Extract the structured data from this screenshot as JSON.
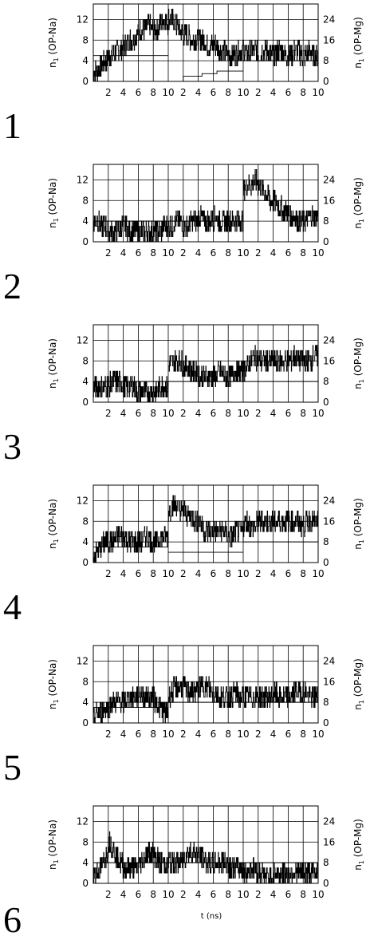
{
  "figure": {
    "xlabel": "t (ns)",
    "panel_numbers": [
      "1",
      "2",
      "3",
      "4",
      "5",
      "6"
    ]
  },
  "chart_data": [
    {
      "type": "line",
      "panel": "1",
      "ylabel_left": "n1 (OP-Na)",
      "ylabel_right": "n1 (OP-Mg)",
      "ylim_left": [
        0,
        15
      ],
      "ylim_right": [
        0,
        30
      ],
      "yticks_left": [
        0,
        4,
        8,
        12
      ],
      "yticks_right": [
        0,
        8,
        16,
        24
      ],
      "segments": 3,
      "segment_xlim_ns": [
        0,
        10
      ],
      "xtick_labels": [
        "2",
        "4",
        "6",
        "8",
        "10",
        "2",
        "4",
        "6",
        "8",
        "10",
        "2",
        "4",
        "6",
        "8",
        "10"
      ],
      "grid": true,
      "series": [
        {
          "axis": "left",
          "segment_levels": [
            [
              2,
              2,
              3,
              4,
              5,
              5,
              6,
              6,
              7,
              8,
              8,
              9,
              10,
              10,
              11,
              10,
              10,
              11,
              12,
              11
            ],
            [
              12,
              12,
              11,
              10,
              9,
              9,
              8,
              8,
              8,
              8,
              7,
              7,
              7,
              6,
              6,
              5,
              5,
              5,
              6,
              6
            ],
            [
              6,
              5,
              6,
              6,
              5,
              6,
              6,
              5,
              5,
              6,
              6,
              5,
              5,
              6,
              6,
              5,
              5,
              6,
              5,
              5
            ]
          ]
        },
        {
          "axis": "right",
          "segment_levels": [
            [
              10,
              10,
              10,
              10,
              10,
              10,
              10,
              10,
              10,
              10,
              10,
              10,
              10,
              10,
              10,
              10,
              10,
              10,
              10,
              10
            ],
            [
              0,
              0,
              0,
              0,
              2,
              2,
              2,
              2,
              2,
              3,
              3,
              3,
              3,
              4,
              4,
              4,
              4,
              4,
              4,
              4
            ],
            [
              8,
              8,
              8,
              8,
              8,
              8,
              8,
              8,
              8,
              8,
              8,
              8,
              8,
              8,
              8,
              8,
              8,
              8,
              8,
              8
            ]
          ]
        }
      ]
    },
    {
      "type": "line",
      "panel": "2",
      "ylabel_left": "n1 (OP-Na)",
      "ylabel_right": "n1 (OP-Mg)",
      "ylim_left": [
        0,
        15
      ],
      "ylim_right": [
        0,
        30
      ],
      "yticks_left": [
        0,
        4,
        8,
        12
      ],
      "yticks_right": [
        0,
        8,
        16,
        24
      ],
      "segments": 3,
      "segment_xlim_ns": [
        0,
        10
      ],
      "xtick_labels": [
        "2",
        "4",
        "6",
        "8",
        "10",
        "2",
        "4",
        "6",
        "8",
        "10",
        "2",
        "4",
        "6",
        "8",
        "10"
      ],
      "grid": true,
      "series": [
        {
          "axis": "left",
          "segment_levels": [
            [
              4,
              4,
              3,
              3,
              2,
              2,
              2,
              3,
              3,
              2,
              2,
              2,
              2,
              2,
              2,
              2,
              2,
              2,
              3,
              3
            ],
            [
              3,
              3,
              4,
              4,
              3,
              3,
              4,
              4,
              5,
              4,
              4,
              4,
              5,
              4,
              4,
              4,
              4,
              4,
              4,
              4
            ],
            [
              10,
              11,
              11,
              12,
              11,
              10,
              9,
              8,
              8,
              7,
              6,
              6,
              5,
              5,
              4,
              4,
              4,
              5,
              5,
              5
            ]
          ]
        },
        {
          "axis": "right",
          "segment_levels": [
            [
              8,
              8,
              8,
              8,
              8,
              8,
              8,
              8,
              8,
              8,
              8,
              8,
              8,
              8,
              8,
              8,
              8,
              8,
              8,
              8
            ],
            [
              8,
              8,
              8,
              8,
              8,
              8,
              8,
              8,
              8,
              8,
              8,
              8,
              8,
              8,
              8,
              8,
              8,
              8,
              8,
              8
            ],
            [
              16,
              16,
              16,
              16,
              16,
              16,
              16,
              16,
              16,
              16,
              16,
              16,
              16,
              16,
              16,
              16,
              16,
              16,
              16,
              16
            ]
          ]
        }
      ]
    },
    {
      "type": "line",
      "panel": "3",
      "ylabel_left": "n1 (OP-Na)",
      "ylabel_right": "n1 (OP-Mg)",
      "ylim_left": [
        0,
        15
      ],
      "ylim_right": [
        0,
        30
      ],
      "yticks_left": [
        0,
        4,
        8,
        12
      ],
      "yticks_right": [
        0,
        8,
        16,
        24
      ],
      "segments": 3,
      "segment_xlim_ns": [
        0,
        10
      ],
      "xtick_labels": [
        "2",
        "4",
        "6",
        "8",
        "10",
        "2",
        "4",
        "6",
        "8",
        "10",
        "2",
        "4",
        "6",
        "8",
        "10"
      ],
      "grid": true,
      "series": [
        {
          "axis": "left",
          "segment_levels": [
            [
              3,
              3,
              3,
              3,
              3,
              4,
              4,
              4,
              3,
              3,
              3,
              2,
              2,
              2,
              2,
              2,
              2,
              3,
              3,
              3
            ],
            [
              7,
              8,
              8,
              8,
              7,
              7,
              6,
              6,
              5,
              5,
              5,
              5,
              5,
              6,
              5,
              5,
              5,
              6,
              6,
              6
            ],
            [
              6,
              7,
              8,
              9,
              8,
              8,
              8,
              8,
              8,
              8,
              8,
              8,
              8,
              9,
              8,
              8,
              8,
              8,
              9,
              9
            ]
          ]
        },
        {
          "axis": "right",
          "segment_levels": [
            [
              8,
              8,
              8,
              8,
              8,
              8,
              8,
              8,
              8,
              8,
              8,
              8,
              8,
              8,
              8,
              8,
              8,
              8,
              8,
              8
            ],
            [
              8,
              8,
              8,
              8,
              8,
              8,
              8,
              8,
              8,
              8,
              8,
              8,
              8,
              8,
              8,
              8,
              8,
              8,
              8,
              8
            ],
            [
              8,
              8,
              8,
              8,
              8,
              8,
              8,
              8,
              8,
              8,
              8,
              8,
              8,
              8,
              8,
              8,
              8,
              8,
              8,
              8
            ]
          ]
        }
      ]
    },
    {
      "type": "line",
      "panel": "4",
      "ylabel_left": "n1 (OP-Na)",
      "ylabel_right": "n1 (OP-Mg)",
      "ylim_left": [
        0,
        15
      ],
      "ylim_right": [
        0,
        30
      ],
      "yticks_left": [
        0,
        4,
        8,
        12
      ],
      "yticks_right": [
        0,
        8,
        16,
        24
      ],
      "segments": 3,
      "segment_xlim_ns": [
        0,
        10
      ],
      "xtick_labels": [
        "2",
        "4",
        "6",
        "8",
        "10",
        "2",
        "4",
        "6",
        "8",
        "10",
        "2",
        "4",
        "6",
        "8",
        "10"
      ],
      "grid": true,
      "series": [
        {
          "axis": "left",
          "segment_levels": [
            [
              1,
              2,
              3,
              4,
              4,
              4,
              5,
              5,
              5,
              4,
              4,
              4,
              4,
              5,
              5,
              4,
              4,
              5,
              5,
              5
            ],
            [
              10,
              11,
              11,
              10,
              10,
              9,
              9,
              8,
              8,
              6,
              6,
              6,
              6,
              6,
              6,
              5,
              5,
              6,
              6,
              6
            ],
            [
              7,
              8,
              7,
              7,
              8,
              8,
              8,
              8,
              8,
              8,
              8,
              8,
              8,
              8,
              8,
              7,
              8,
              8,
              8,
              8
            ]
          ]
        },
        {
          "axis": "right",
          "segment_levels": [
            [
              6,
              6,
              6,
              6,
              6,
              6,
              6,
              6,
              6,
              6,
              6,
              6,
              6,
              6,
              6,
              6,
              6,
              6,
              6,
              6
            ],
            [
              4,
              4,
              4,
              4,
              4,
              4,
              4,
              4,
              4,
              4,
              4,
              4,
              4,
              4,
              4,
              4,
              4,
              4,
              4,
              4
            ],
            [
              8,
              8,
              8,
              8,
              8,
              8,
              8,
              8,
              8,
              8,
              8,
              8,
              8,
              8,
              8,
              8,
              8,
              8,
              8,
              8
            ]
          ]
        }
      ]
    },
    {
      "type": "line",
      "panel": "5",
      "ylabel_left": "n1 (OP-Na)",
      "ylabel_right": "n1 (OP-Mg)",
      "ylim_left": [
        0,
        15
      ],
      "ylim_right": [
        0,
        30
      ],
      "yticks_left": [
        0,
        4,
        8,
        12
      ],
      "yticks_right": [
        0,
        8,
        16,
        24
      ],
      "segments": 3,
      "segment_xlim_ns": [
        0,
        10
      ],
      "xtick_labels": [
        "2",
        "4",
        "6",
        "8",
        "10",
        "2",
        "4",
        "6",
        "8",
        "10",
        "2",
        "4",
        "6",
        "8",
        "10"
      ],
      "grid": true,
      "series": [
        {
          "axis": "left",
          "segment_levels": [
            [
              1,
              2,
              2,
              3,
              3,
              4,
              4,
              4,
              4,
              5,
              5,
              5,
              6,
              5,
              5,
              5,
              4,
              3,
              2,
              2
            ],
            [
              5,
              6,
              7,
              7,
              7,
              6,
              6,
              6,
              7,
              7,
              7,
              6,
              6,
              5,
              5,
              5,
              5,
              6,
              5,
              5
            ],
            [
              5,
              5,
              5,
              5,
              5,
              5,
              5,
              5,
              6,
              5,
              5,
              5,
              5,
              6,
              6,
              6,
              6,
              5,
              5,
              5
            ]
          ]
        },
        {
          "axis": "right",
          "segment_levels": [
            [
              6,
              6,
              6,
              6,
              6,
              6,
              6,
              6,
              6,
              6,
              6,
              6,
              6,
              6,
              6,
              6,
              6,
              6,
              6,
              6
            ],
            [
              8,
              8,
              8,
              8,
              8,
              8,
              8,
              8,
              8,
              8,
              8,
              8,
              8,
              8,
              8,
              8,
              8,
              8,
              8,
              8
            ],
            [
              8,
              8,
              8,
              8,
              8,
              8,
              8,
              8,
              8,
              8,
              8,
              8,
              8,
              8,
              8,
              8,
              8,
              8,
              8,
              8
            ]
          ]
        }
      ]
    },
    {
      "type": "line",
      "panel": "6",
      "ylabel_left": "n1 (OP-Na)",
      "ylabel_right": "n1 (OP-Mg)",
      "ylim_left": [
        0,
        15
      ],
      "ylim_right": [
        0,
        30
      ],
      "yticks_left": [
        0,
        4,
        8,
        12
      ],
      "yticks_right": [
        0,
        8,
        16,
        24
      ],
      "segments": 3,
      "segment_xlim_ns": [
        0,
        10
      ],
      "xtick_labels": [
        "2",
        "4",
        "6",
        "8",
        "10",
        "2",
        "4",
        "6",
        "8",
        "10",
        "2",
        "4",
        "6",
        "8",
        "10"
      ],
      "grid": true,
      "series": [
        {
          "axis": "left",
          "segment_levels": [
            [
              2,
              2,
              3,
              5,
              8,
              7,
              5,
              4,
              3,
              3,
              3,
              3,
              4,
              5,
              6,
              6,
              5,
              4,
              4,
              3
            ],
            [
              4,
              4,
              4,
              4,
              5,
              6,
              6,
              6,
              5,
              5,
              4,
              4,
              4,
              4,
              4,
              4,
              3,
              3,
              3,
              3
            ],
            [
              2,
              2,
              3,
              3,
              2,
              2,
              1,
              1,
              2,
              2,
              2,
              2,
              2,
              2,
              2,
              2,
              2,
              2,
              2,
              3
            ]
          ]
        },
        {
          "axis": "right",
          "segment_levels": [
            [
              8,
              8,
              8,
              8,
              8,
              8,
              8,
              8,
              8,
              8,
              8,
              8,
              8,
              8,
              8,
              8,
              8,
              8,
              8,
              8
            ],
            [
              8,
              8,
              8,
              8,
              8,
              8,
              8,
              8,
              8,
              8,
              8,
              8,
              8,
              8,
              8,
              8,
              8,
              8,
              8,
              8
            ],
            [
              8,
              8,
              8,
              8,
              8,
              8,
              8,
              8,
              8,
              8,
              8,
              8,
              8,
              8,
              8,
              8,
              8,
              8,
              8,
              8
            ]
          ]
        }
      ]
    }
  ]
}
